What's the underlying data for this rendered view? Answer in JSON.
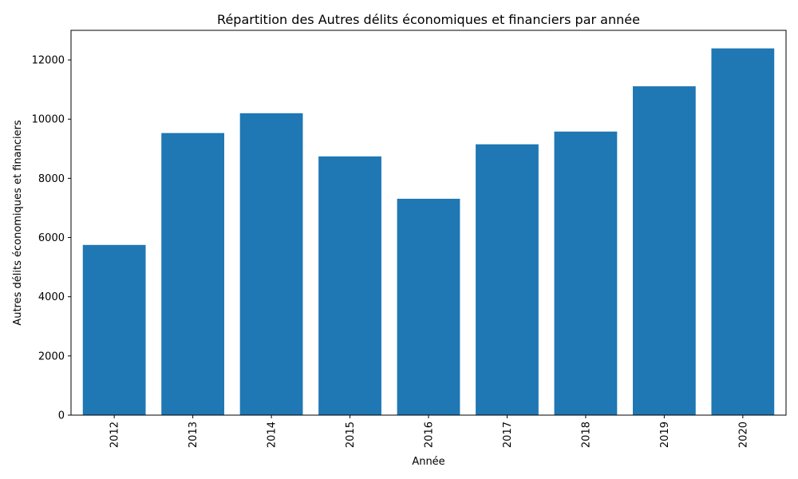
{
  "chart_data": {
    "type": "bar",
    "title": "Répartition des Autres délits économiques et financiers par année",
    "xlabel": "Année",
    "ylabel": "Autres délits économiques et financiers",
    "categories": [
      "2012",
      "2013",
      "2014",
      "2015",
      "2016",
      "2017",
      "2018",
      "2019",
      "2020"
    ],
    "values": [
      5750,
      9530,
      10200,
      8740,
      7310,
      9150,
      9580,
      11110,
      12390
    ],
    "ylim": [
      0,
      13000
    ],
    "yticks": [
      0,
      2000,
      4000,
      6000,
      8000,
      10000,
      12000
    ],
    "xtick_rotation": "vertical",
    "grid": false,
    "legend": "none",
    "bar_color": "#1f77b4"
  }
}
